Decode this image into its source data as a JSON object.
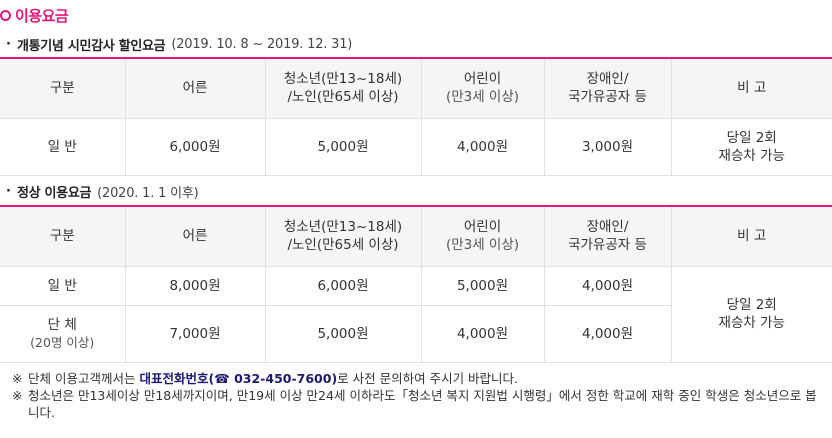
{
  "page": {
    "title": "이용요금"
  },
  "section1": {
    "marker": "·",
    "title": "개통기념 시민감사 할인요금",
    "period": "(2019. 10. 8 ~ 2019. 12. 31)"
  },
  "section2": {
    "marker": "·",
    "title": "정상 이용요금",
    "period": "(2020. 1. 1 이후)"
  },
  "columns": {
    "category": "구분",
    "adult": "어른",
    "youth_line1": "청소년(만13~18세)",
    "youth_line2": "/노인(만65세 이상)",
    "child_line1": "어린이",
    "child_line2": "(만3세 이상)",
    "disabled_line1": "장애인/",
    "disabled_line2": "국가유공자 등",
    "remarks": "비 고"
  },
  "table1": {
    "row": {
      "category": "일 반",
      "adult": "6,000원",
      "youth": "5,000원",
      "child": "4,000원",
      "disabled": "3,000원",
      "remarks_line1": "당일 2회",
      "remarks_line2": "재승차 가능"
    }
  },
  "table2": {
    "rows": [
      {
        "category": "일 반",
        "adult": "8,000원",
        "youth": "6,000원",
        "child": "5,000원",
        "disabled": "4,000원"
      },
      {
        "category_line1": "단 체",
        "category_line2": "(20명 이상)",
        "adult": "7,000원",
        "youth": "5,000원",
        "child": "4,000원",
        "disabled": "4,000원"
      }
    ],
    "remarks_line1": "당일 2회",
    "remarks_line2": "재승차 가능"
  },
  "notes": {
    "mark": "※",
    "note1_pre": "단체 이용고객께서는 ",
    "note1_highlight": "대표전화번호(☎ 032-450-7600)",
    "note1_post": "로 사전 문의하여 주시기 바랍니다.",
    "note2": "청소년은 만13세이상 만18세까지이며, 만19세 이상 만24세 이하라도「청소년 복지 지원법 시행령」에서 정한 학교에 재학 중인 학생은 청소년으로 봅니다."
  },
  "colors": {
    "accent": "#e2187a",
    "header_bg": "#f5f5f5",
    "border": "#e1e1e1"
  }
}
